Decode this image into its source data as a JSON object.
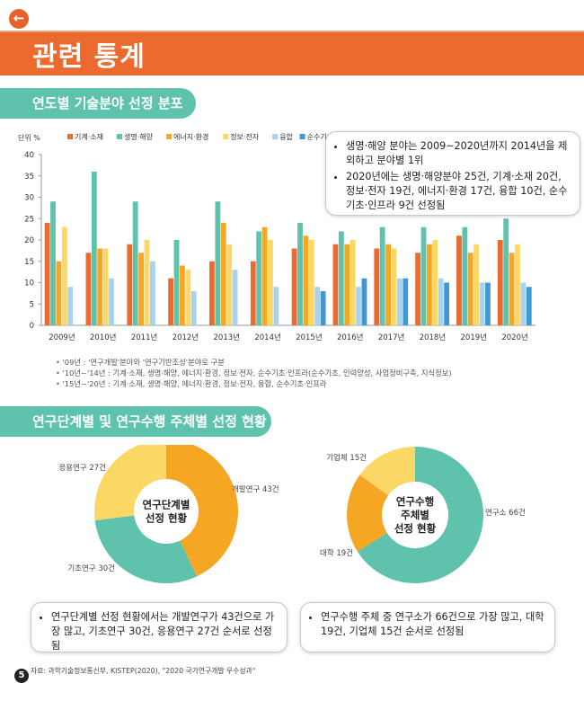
{
  "header": {
    "back_icon": "left-arrow-icon",
    "title": "관련 통계"
  },
  "section1": {
    "title": "연도별 기술분야 선정 분포"
  },
  "section2": {
    "title": "연구단계별 및 연구수행 주체별 선정 현황"
  },
  "colors": {
    "accent": "#ea6a30",
    "teal": "#5ec2ac"
  },
  "callout1": [
    "생명·해양 분야는 2009~2020년까지 2014년을 제외하고 분야별 1위",
    "2020년에는 생명·해양분야 25건, 기계·소재 20건, 정보·전자 19건, 에너지·환경 17건, 융합 10건, 순수기초·인프라 9건 선정됨"
  ],
  "notes": [
    "'09년 : '연구개발'분야와 '연구기반조성'분야로 구분",
    "'10년~'14년 : 기계·소재, 생명·해양, 에너지·환경, 정보·전자, 순수기초·인프라(순수기초, 인력양성, 사업정비구축, 지식정보)",
    "'15년~'20년 : 기계·소재, 생명·해양, 에너지·환경, 정보·전자, 융합, 순수기초·인프라"
  ],
  "callout2": "연구단계별 선정 현황에서는 개발연구가 43건으로 가장 많고, 기초연구 30건, 응용연구 27건 순서로 선정됨",
  "callout3": "연구수행 주체 중 연구소가 66건으로 가장 많고, 대학 19건, 기업체 15건 순서로 선정됨",
  "source": "자료: 과학기술정보통신부, KISTEP(2020), \"2020 국가연구개발 우수성과\"",
  "page_number": "5",
  "chart_data": [
    {
      "type": "bar",
      "unit_label": "단위 %",
      "categories": [
        "2009년",
        "2010년",
        "2011년",
        "2012년",
        "2013년",
        "2014년",
        "2015년",
        "2016년",
        "2017년",
        "2018년",
        "2019년",
        "2020년"
      ],
      "ylim": [
        0,
        40
      ],
      "yticks": [
        0,
        5,
        10,
        15,
        20,
        25,
        30,
        35,
        40
      ],
      "grid": false,
      "legend_position": "top",
      "series": [
        {
          "name": "기계·소재",
          "color": "#ea6a30",
          "values": [
            24,
            17,
            19,
            11,
            15,
            15,
            18,
            19,
            18,
            17,
            21,
            20
          ]
        },
        {
          "name": "생명·해양",
          "color": "#5ec2ac",
          "values": [
            29,
            36,
            29,
            20,
            29,
            22,
            24,
            22,
            23,
            23,
            23,
            25
          ]
        },
        {
          "name": "에너지·환경",
          "color": "#f5a623",
          "values": [
            15,
            18,
            17,
            14,
            24,
            23,
            21,
            19,
            19,
            19,
            17,
            17
          ]
        },
        {
          "name": "정보·전자",
          "color": "#fbd766",
          "values": [
            23,
            18,
            20,
            13,
            19,
            20,
            20,
            20,
            18,
            20,
            19,
            19
          ]
        },
        {
          "name": "융합",
          "color": "#a9d3ec",
          "values": [
            9,
            11,
            15,
            8,
            13,
            9,
            9,
            9,
            11,
            11,
            10,
            10
          ]
        },
        {
          "name": "순수기초·인프라",
          "color": "#3f98d6",
          "values": [
            null,
            null,
            null,
            null,
            null,
            null,
            8,
            11,
            11,
            10,
            10,
            9
          ]
        }
      ]
    },
    {
      "type": "pie",
      "center_label": [
        "연구단계별",
        "선정 현황"
      ],
      "slices": [
        {
          "label": "개발연구 43건",
          "value": 43,
          "color": "#f5a623"
        },
        {
          "label": "기초연구 30건",
          "value": 30,
          "color": "#5ec2ac"
        },
        {
          "label": "응용연구 27건",
          "value": 27,
          "color": "#fbd766"
        }
      ]
    },
    {
      "type": "pie",
      "center_label": [
        "연구수행",
        "주체별",
        "선정 현황"
      ],
      "slices": [
        {
          "label": "연구소 66건",
          "value": 66,
          "color": "#5ec2ac"
        },
        {
          "label": "대학 19건",
          "value": 19,
          "color": "#f5a623"
        },
        {
          "label": "기업체 15건",
          "value": 15,
          "color": "#fbd766"
        }
      ]
    }
  ]
}
